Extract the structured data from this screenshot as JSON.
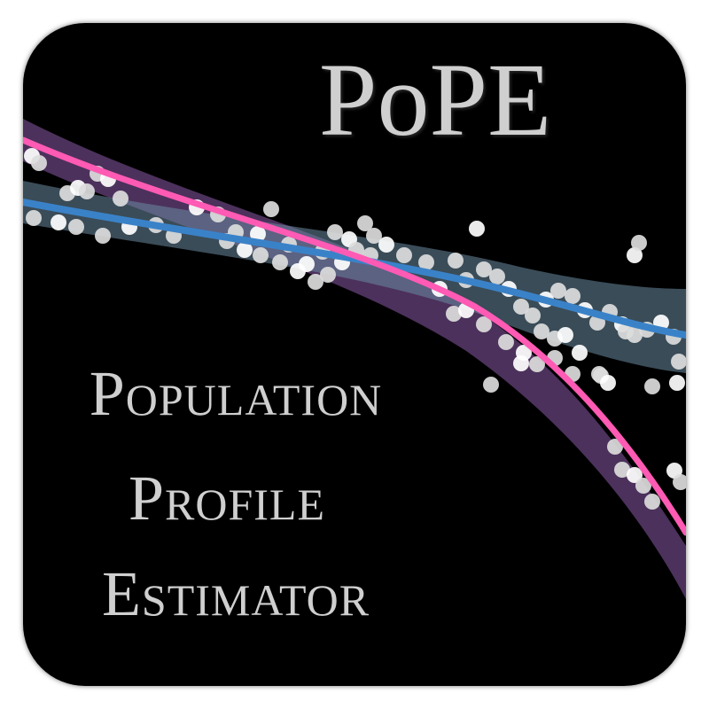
{
  "logo": {
    "title": "PoPE",
    "subtitle_lines": [
      "Population",
      "Profile",
      "Estimator"
    ]
  },
  "colors": {
    "background": "#000000",
    "text": "#cfcfcf",
    "pink_curve": "#ff5ab4",
    "pink_band": "#8a5aa8",
    "blue_curve": "#3a82c8",
    "blue_band": "#5a7a90",
    "points": "#e8e8e8"
  }
}
